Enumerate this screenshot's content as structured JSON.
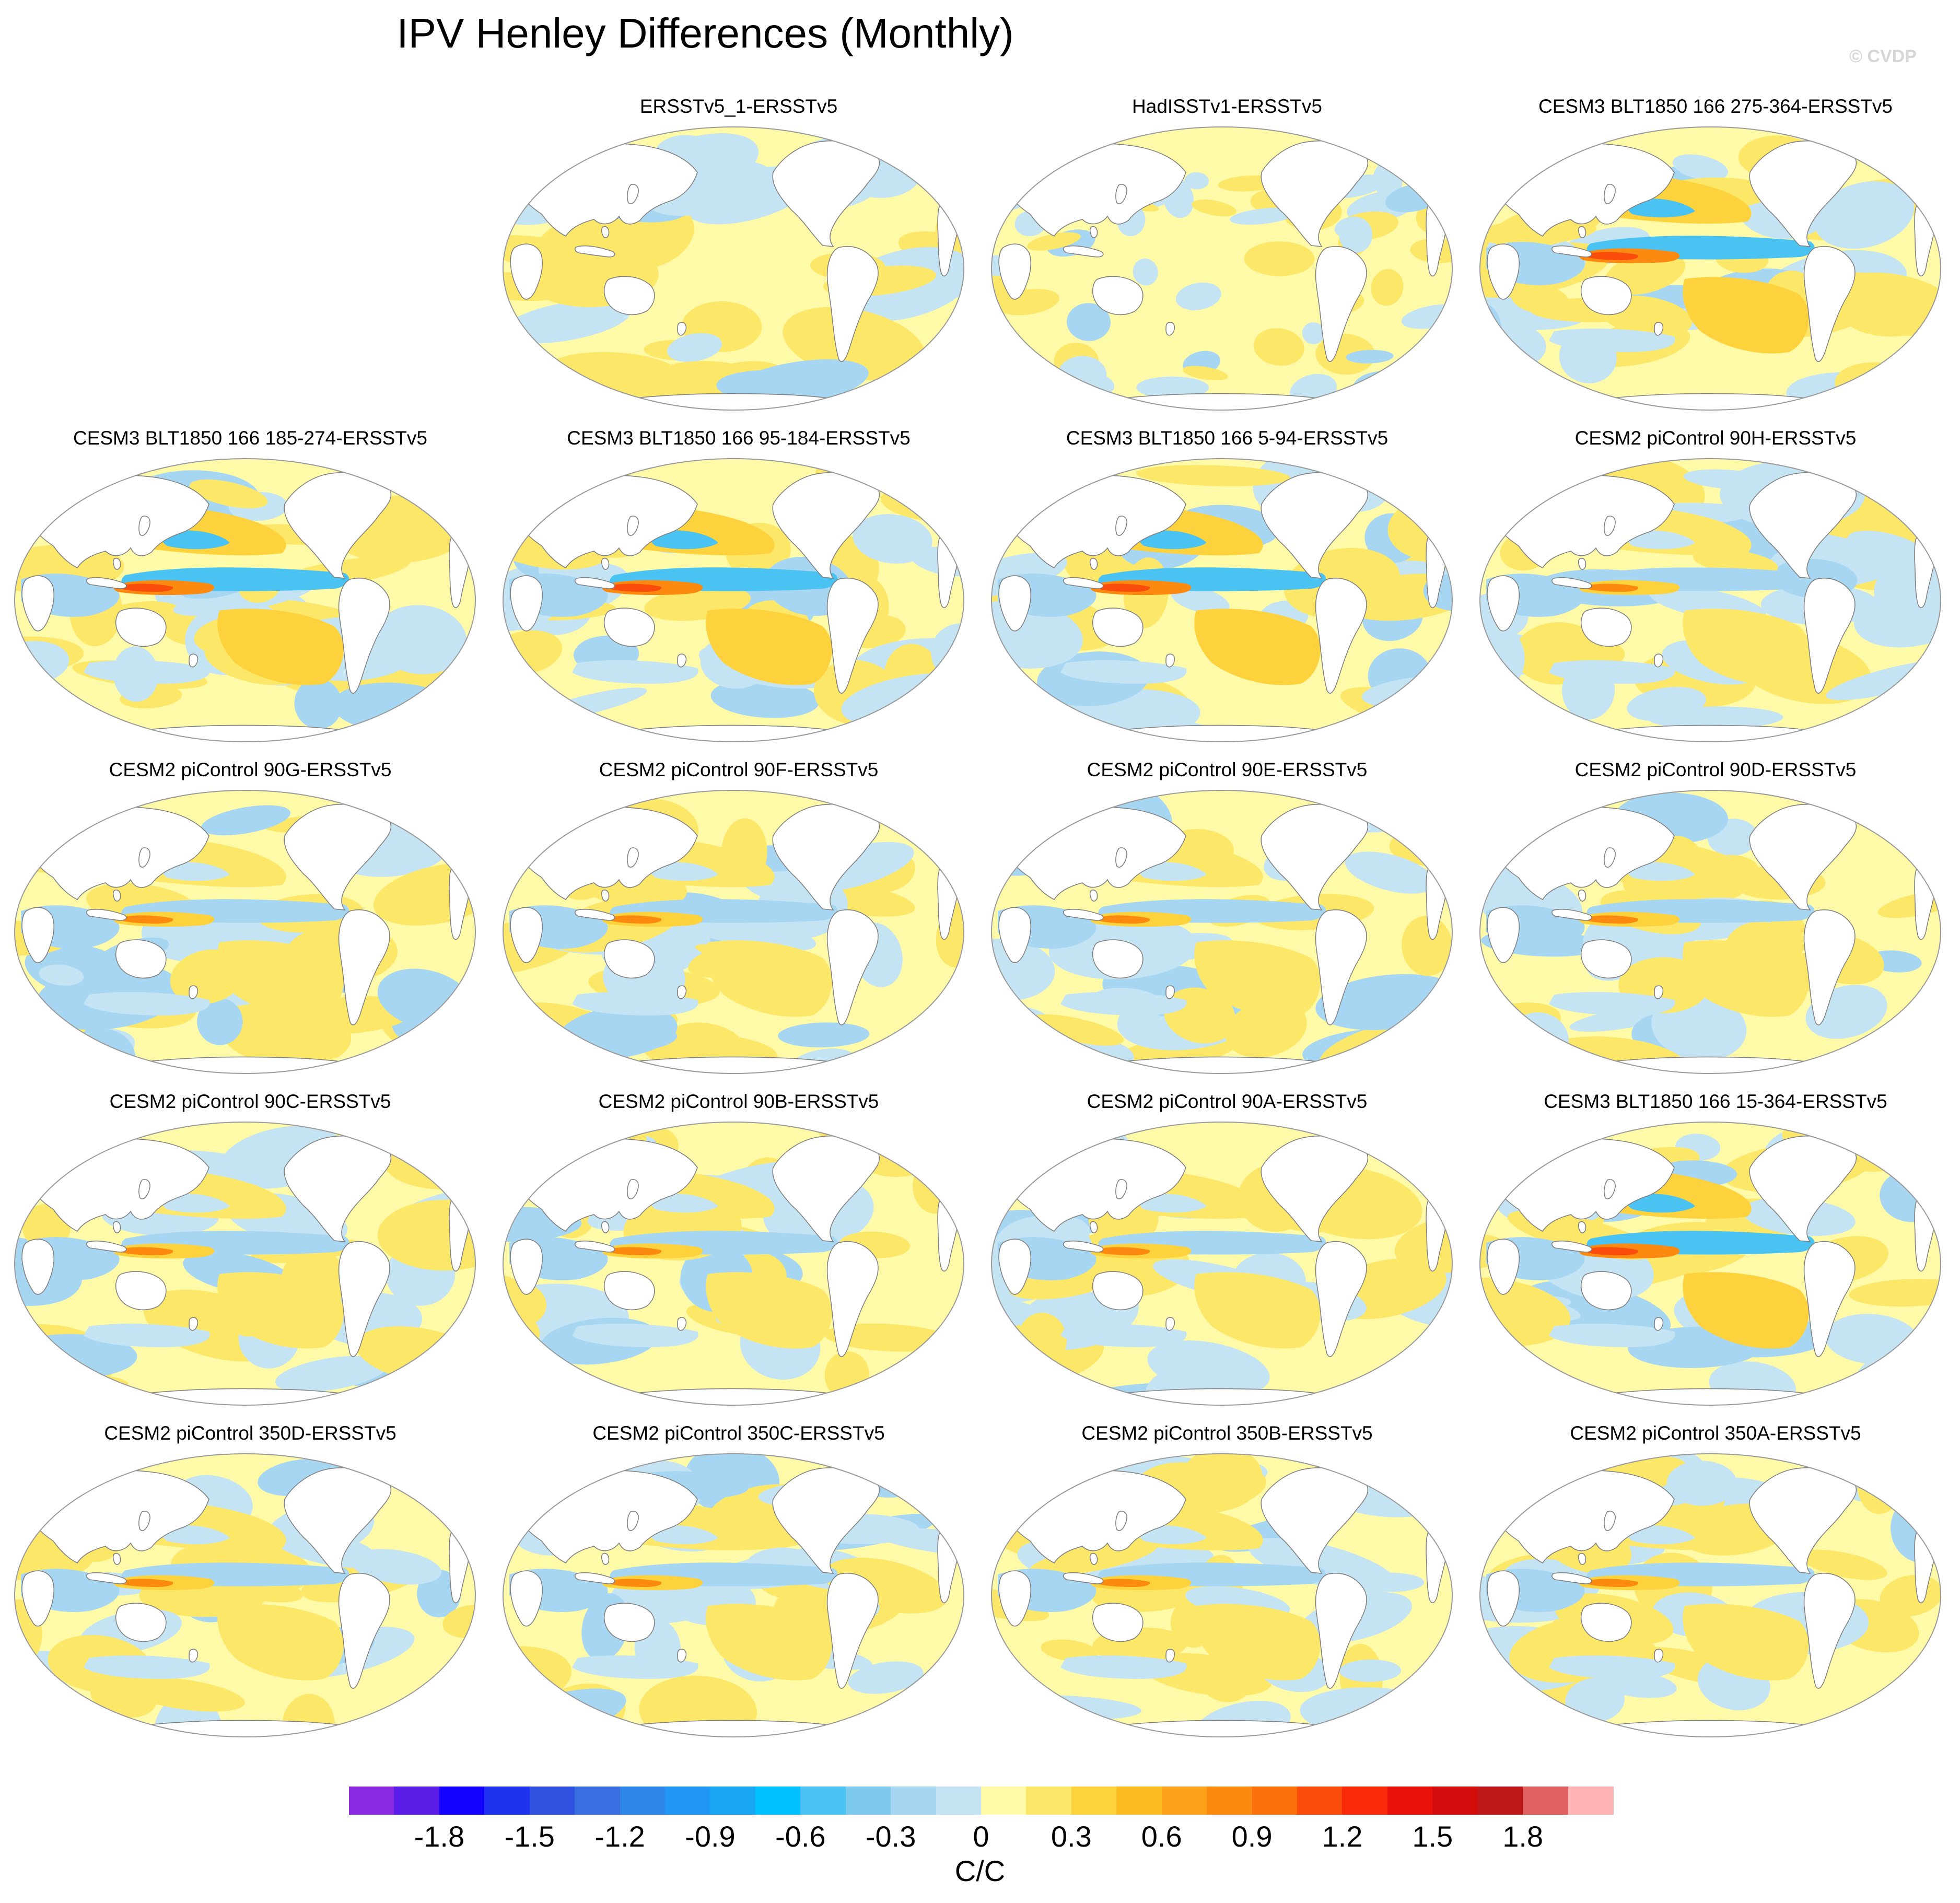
{
  "title": "IPV Henley Differences (Monthly)",
  "watermark": "© CVDP",
  "panels": [
    {
      "title": "ERSSTv5_1-ERSSTv5",
      "pattern": "weak"
    },
    {
      "title": "HadISSTv1-ERSSTv5",
      "pattern": "noise"
    },
    {
      "title": "CESM3 BLT1850 166 275-364-ERSSTv5",
      "pattern": "strong"
    },
    {
      "title": "CESM3 BLT1850 166 185-274-ERSSTv5",
      "pattern": "strong"
    },
    {
      "title": "CESM3 BLT1850 166 95-184-ERSSTv5",
      "pattern": "strong"
    },
    {
      "title": "CESM3 BLT1850 166 5-94-ERSSTv5",
      "pattern": "strong"
    },
    {
      "title": "CESM2 piControl 90H-ERSSTv5",
      "pattern": "model"
    },
    {
      "title": "CESM2 piControl 90G-ERSSTv5",
      "pattern": "model"
    },
    {
      "title": "CESM2 piControl 90F-ERSSTv5",
      "pattern": "model"
    },
    {
      "title": "CESM2 piControl 90E-ERSSTv5",
      "pattern": "model"
    },
    {
      "title": "CESM2 piControl 90D-ERSSTv5",
      "pattern": "model"
    },
    {
      "title": "CESM2 piControl 90C-ERSSTv5",
      "pattern": "model"
    },
    {
      "title": "CESM2 piControl 90B-ERSSTv5",
      "pattern": "model"
    },
    {
      "title": "CESM2 piControl 90A-ERSSTv5",
      "pattern": "model"
    },
    {
      "title": "CESM3 BLT1850 166 15-364-ERSSTv5",
      "pattern": "strong"
    },
    {
      "title": "CESM2 piControl 350D-ERSSTv5",
      "pattern": "model"
    },
    {
      "title": "CESM2 piControl 350C-ERSSTv5",
      "pattern": "model"
    },
    {
      "title": "CESM2 piControl 350B-ERSSTv5",
      "pattern": "model"
    },
    {
      "title": "CESM2 piControl 350A-ERSSTv5",
      "pattern": "model"
    }
  ],
  "colorbar": {
    "units": "C/C",
    "tick_labels": [
      "-1.8",
      "-1.5",
      "-1.2",
      "-0.9",
      "-0.6",
      "-0.3",
      "0",
      "0.3",
      "0.6",
      "0.9",
      "1.2",
      "1.5",
      "1.8"
    ],
    "colors": [
      "#8a2be2",
      "#5a1de8",
      "#1400ff",
      "#1e32f0",
      "#3050e0",
      "#3a6ee0",
      "#2f86ea",
      "#2196f3",
      "#18a6f2",
      "#00c0ff",
      "#4ac3f2",
      "#7ec9ee",
      "#a6d6f2",
      "#c4e4f4",
      "#fffaa8",
      "#fde768",
      "#fdd23c",
      "#fdbb22",
      "#fda11a",
      "#fc8a10",
      "#fb6e0a",
      "#fa4c0a",
      "#f92a0a",
      "#e9100a",
      "#d20c0a",
      "#c01818",
      "#e06060",
      "#ffb4b4"
    ]
  },
  "shading": {
    "ocean_neutral": "#fffaa8",
    "cool": "#c4e4f4",
    "cool_mid": "#a6d6f2",
    "cool_strong": "#4ac3f2",
    "warm": "#fde768",
    "warm_mid": "#fdd23c",
    "warm_strong": "#fc8a10",
    "warm_max": "#fa4c0a",
    "land": "#ffffff",
    "coast": "#808080"
  }
}
